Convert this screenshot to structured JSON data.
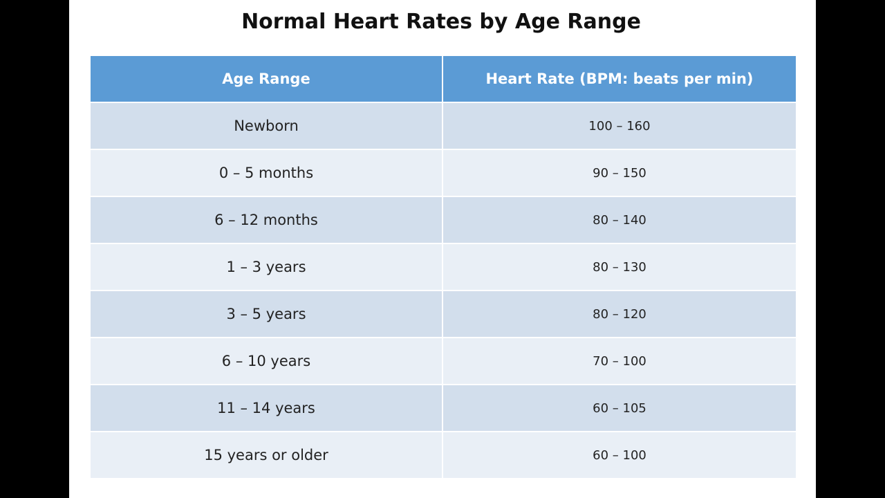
{
  "header": {
    "title": "Normal Heart Rates by Age Range"
  },
  "table": {
    "columns": [
      "Age Range",
      "Heart Rate (BPM: beats per min)"
    ],
    "rows": [
      [
        "Newborn",
        "100 – 160"
      ],
      [
        "0 – 5 months",
        "90 – 150"
      ],
      [
        "6 – 12 months",
        "80 – 140"
      ],
      [
        "1 – 3 years",
        "80 – 130"
      ],
      [
        "3 – 5 years",
        "80 – 120"
      ],
      [
        "6 – 10 years",
        "70 – 100"
      ],
      [
        "11 – 14 years",
        "60 – 105"
      ],
      [
        "15 years or older",
        "60 – 100"
      ]
    ]
  }
}
